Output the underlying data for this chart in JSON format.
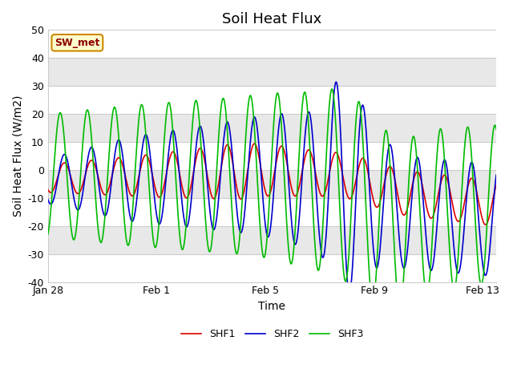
{
  "title": "Soil Heat Flux",
  "xlabel": "Time",
  "ylabel": "Soil Heat Flux (W/m2)",
  "xlim_days": [
    0,
    16.5
  ],
  "ylim": [
    -40,
    50
  ],
  "yticks": [
    -40,
    -30,
    -20,
    -10,
    0,
    10,
    20,
    30,
    40,
    50
  ],
  "xtick_positions": [
    0,
    4,
    8,
    12,
    16
  ],
  "xtick_labels": [
    "Jan 28",
    "Feb 1",
    "Feb 5",
    "Feb 9",
    "Feb 13"
  ],
  "colors": {
    "SHF1": "#dd0000",
    "SHF2": "#0000cc",
    "SHF3": "#00bb00"
  },
  "legend_labels": [
    "SHF1",
    "SHF2",
    "SHF3"
  ],
  "annotation_text": "SW_met",
  "background_color": "#ffffff",
  "plot_bg_light": "#f0f0f0",
  "plot_bg_dark": "#e0e0e0",
  "grid_color": "#cccccc",
  "title_fontsize": 13,
  "axis_label_fontsize": 10,
  "tick_fontsize": 9,
  "band_edges": [
    50,
    40,
    30,
    20,
    10,
    0,
    -10,
    -20,
    -30,
    -40
  ],
  "band_colors": [
    "#ffffff",
    "#e8e8e8",
    "#ffffff",
    "#e8e8e8",
    "#ffffff",
    "#e8e8e8",
    "#ffffff",
    "#e8e8e8",
    "#ffffff"
  ]
}
